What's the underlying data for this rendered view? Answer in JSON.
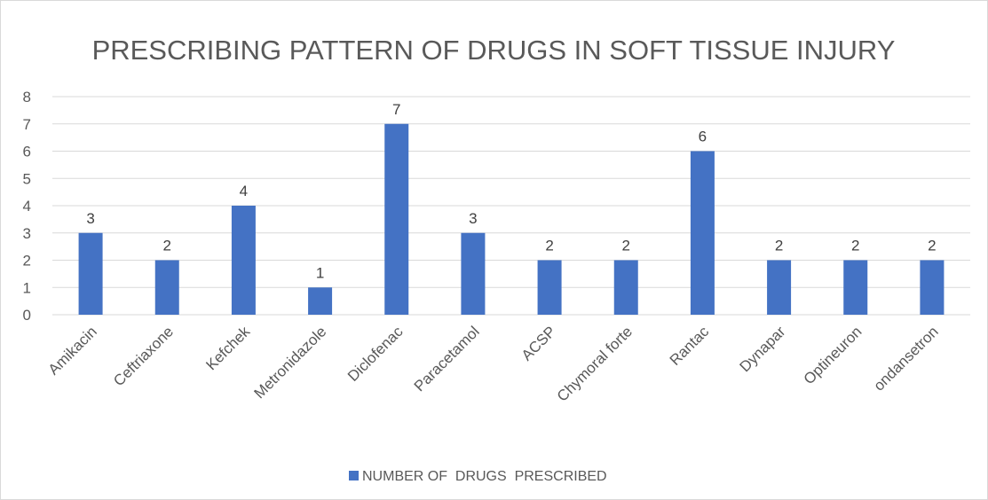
{
  "chart_data": {
    "type": "bar",
    "title": "PRESCRIBING PATTERN OF DRUGS IN SOFT TISSUE INJURY",
    "categories": [
      "Amikacin",
      "Ceftriaxone",
      "Kefchek",
      "Metronidazole",
      "Diclofenac",
      "Paracetamol",
      "ACSP",
      "Chymoral forte",
      "Rantac",
      "Dynapar",
      "Optineuron",
      "ondansetron"
    ],
    "series": [
      {
        "name": "NUMBER OF  DRUGS  PRESCRIBED",
        "values": [
          3,
          2,
          4,
          1,
          7,
          3,
          2,
          2,
          6,
          2,
          2,
          2
        ],
        "color": "#4472C4"
      }
    ],
    "yticks": [
      "0",
      "1",
      "2",
      "3",
      "4",
      "5",
      "6",
      "7",
      "8"
    ],
    "ylim": [
      0,
      8
    ],
    "grid": true,
    "legend_position": "bottom",
    "data_labels": true
  }
}
